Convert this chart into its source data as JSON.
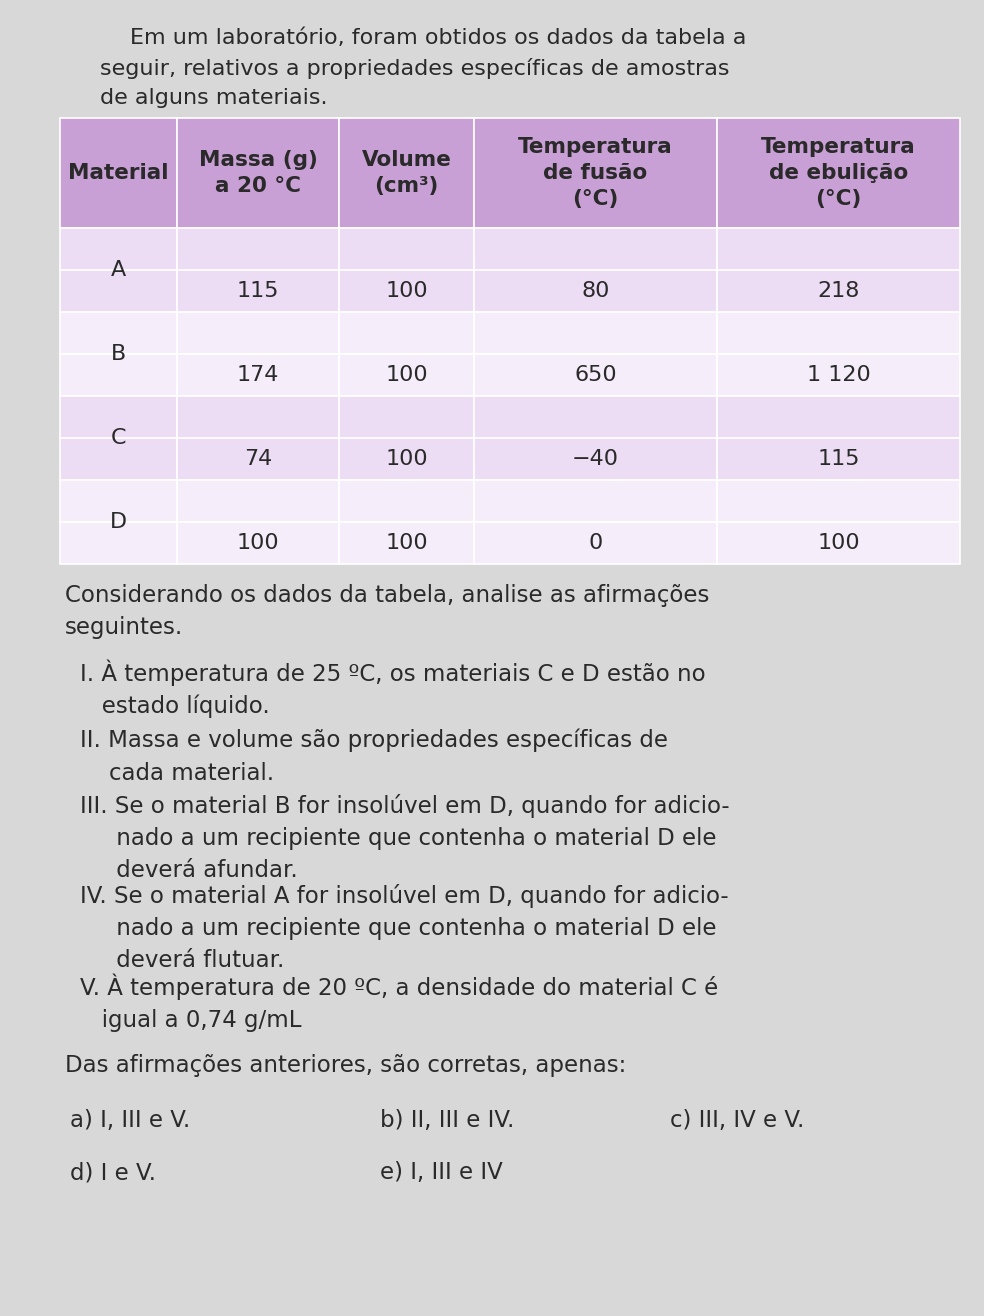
{
  "intro_text_line1": "Em um laboratório, foram obtidos os dados da tabela a",
  "intro_text_line2": "seguir, relativos a propriedades específicas de amostras",
  "intro_text_line3": "de alguns materiais.",
  "table_headers": [
    "Material",
    "Massa (g)\na 20 °C",
    "Volume\n(cm³)",
    "Temperatura\nde fusão\n(°C)",
    "Temperatura\nde ebulição\n(°C)"
  ],
  "table_rows": [
    {
      "mat": "A",
      "massa": "115",
      "volume": "100",
      "fusao": "80",
      "ebulicao": "218"
    },
    {
      "mat": "B",
      "massa": "174",
      "volume": "100",
      "fusao": "650",
      "ebulicao": "1 120"
    },
    {
      "mat": "C",
      "massa": "74",
      "volume": "100",
      "fusao": "−40",
      "ebulicao": "115"
    },
    {
      "mat": "D",
      "massa": "100",
      "volume": "100",
      "fusao": "0",
      "ebulicao": "100"
    }
  ],
  "header_bg": "#c9a0d5",
  "row_bg_light": "#ecddf5",
  "row_bg_lighter": "#f5eefa",
  "page_bg": "#d8d8d8",
  "text_dark": "#2a2a2a",
  "consider_text": "Considerando os dados da tabela, analise as afirmações\nseguintes.",
  "stmt_I": "I. À temperatura de 25 ºC, os materiais C e D estão no\n   estado líquido.",
  "stmt_II": "II. Massa e volume são propriedades específicas de\n    cada material.",
  "stmt_III": "III. Se o material B for insolúvel em D, quando for adicio-\n     nado a um recipiente que contenha o material D ele\n     deverá afundar.",
  "stmt_IV": "IV. Se o material A for insolúvel em D, quando for adicio-\n     nado a um recipiente que contenha o material D ele\n     deverá flutuar.",
  "stmt_V": "V. À temperatura de 20 ºC, a densidade do material C é\n   igual a 0,74 g/mL",
  "conclusion": "Das afirmações anteriores, são corretas, apenas:",
  "ans_a": "a) I, III e V.",
  "ans_b": "b) II, III e IV.",
  "ans_c": "c) III, IV e V.",
  "ans_d": "d) I e V.",
  "ans_e": "e) I, III e IV"
}
